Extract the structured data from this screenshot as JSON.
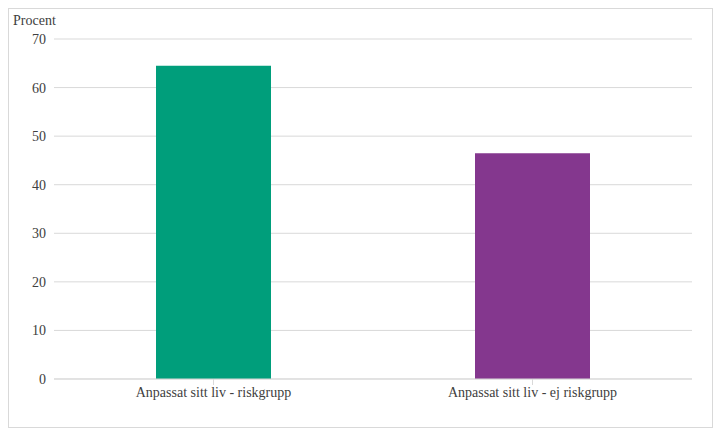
{
  "chart_data": {
    "type": "bar",
    "ylabel": "Procent",
    "categories": [
      "Anpassat sitt liv - riskgrupp",
      "Anpassat sitt liv - ej riskgrupp"
    ],
    "values": [
      64.5,
      46.5
    ],
    "colors": [
      "#009e7b",
      "#84378e"
    ],
    "ylim": [
      0,
      70
    ],
    "yticks": [
      0,
      10,
      20,
      30,
      40,
      50,
      60,
      70
    ],
    "grid": true
  }
}
